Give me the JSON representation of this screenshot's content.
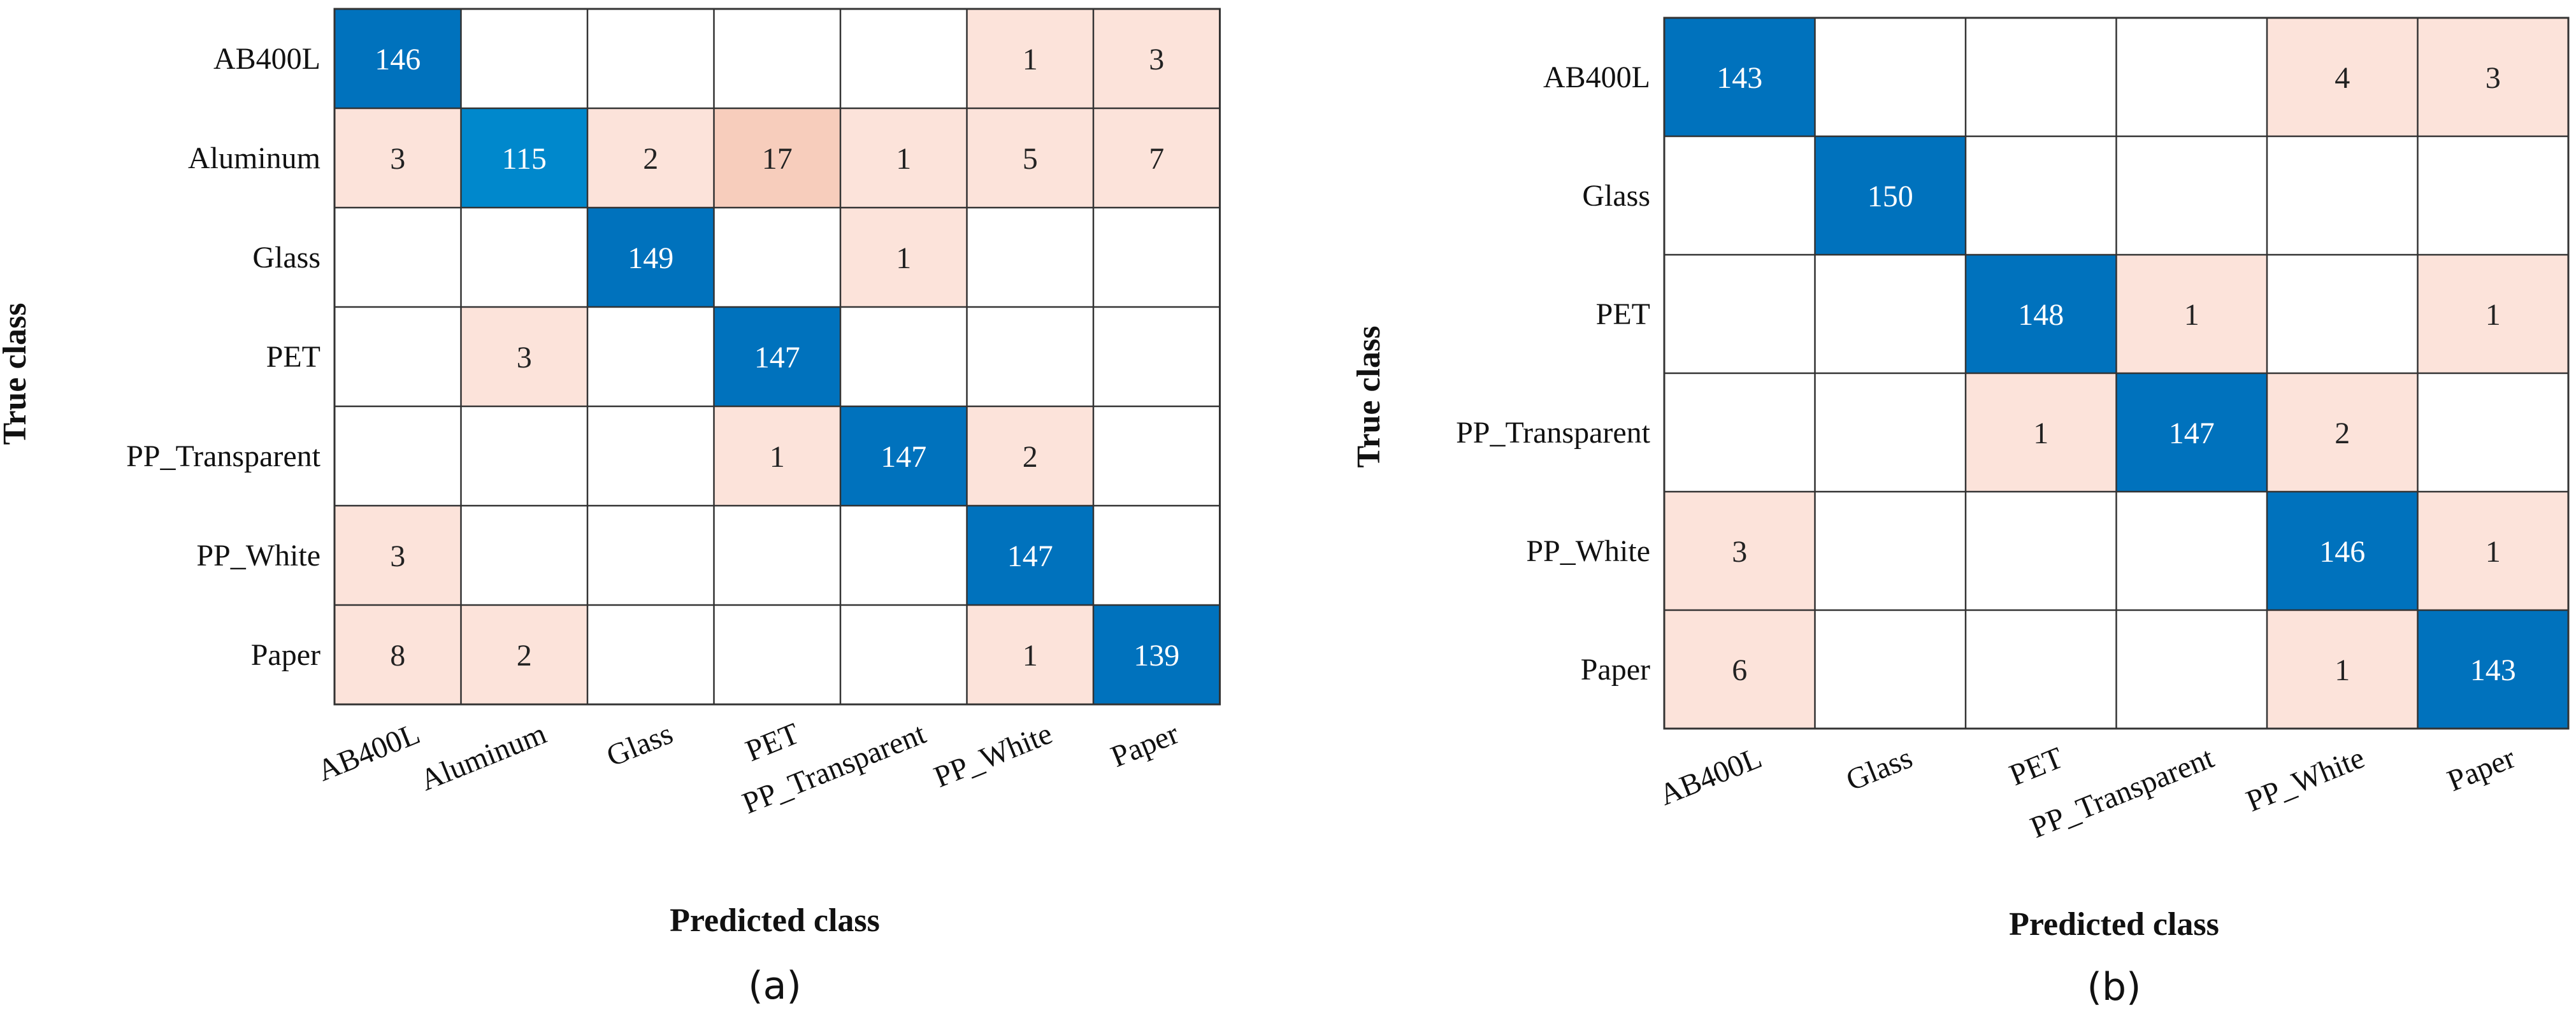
{
  "chart_data": [
    {
      "type": "heatmap",
      "panel_label": "(a)",
      "xlabel": "Predicted class",
      "ylabel": "True class",
      "row_labels": [
        "AB400L",
        "Aluminum",
        "Glass",
        "PET",
        "PP_Transparent",
        "PP_White",
        "Paper"
      ],
      "col_labels": [
        "AB400L",
        "Aluminum",
        "Glass",
        "PET",
        "PP_Transparent",
        "PP_White",
        "Paper"
      ],
      "matrix": [
        [
          146,
          0,
          0,
          0,
          0,
          1,
          3
        ],
        [
          3,
          115,
          2,
          17,
          1,
          5,
          7
        ],
        [
          0,
          0,
          149,
          0,
          1,
          0,
          0
        ],
        [
          0,
          3,
          0,
          147,
          0,
          0,
          0
        ],
        [
          0,
          0,
          0,
          1,
          147,
          2,
          0
        ],
        [
          3,
          0,
          0,
          0,
          0,
          147,
          0
        ],
        [
          8,
          2,
          0,
          0,
          0,
          1,
          139
        ]
      ]
    },
    {
      "type": "heatmap",
      "panel_label": "(b)",
      "xlabel": "Predicted class",
      "ylabel": "True class",
      "row_labels": [
        "AB400L",
        "Glass",
        "PET",
        "PP_Transparent",
        "PP_White",
        "Paper"
      ],
      "col_labels": [
        "AB400L",
        "Glass",
        "PET",
        "PP_Transparent",
        "PP_White",
        "Paper"
      ],
      "matrix": [
        [
          143,
          0,
          0,
          0,
          4,
          3
        ],
        [
          0,
          150,
          0,
          0,
          0,
          0
        ],
        [
          0,
          0,
          148,
          1,
          0,
          1
        ],
        [
          0,
          0,
          1,
          147,
          2,
          0
        ],
        [
          3,
          0,
          0,
          0,
          146,
          1
        ],
        [
          6,
          0,
          0,
          0,
          1,
          143
        ]
      ]
    }
  ],
  "colors": {
    "diagonal": "#0072BD",
    "diagonal_light": "#0088CC",
    "off_diagonal_light": "#FCE3DA",
    "off_diagonal_strong": "#F7CDBC",
    "grid": "#333333"
  }
}
